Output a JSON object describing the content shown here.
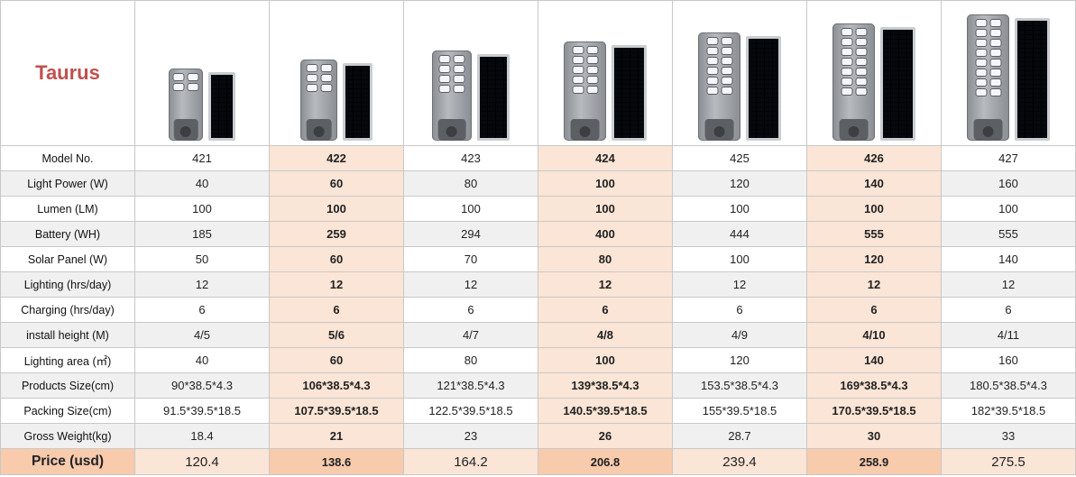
{
  "brand": "Taurus",
  "icons": {
    "lamp": "street-lamp-head-image",
    "panel": "solar-panel-image"
  },
  "colors": {
    "brand": "#c0504d",
    "highlight": "#fbe5d6",
    "price_label": "#f8cbad"
  },
  "products": [
    {
      "leds": 4
    },
    {
      "leds": 6
    },
    {
      "leds": 8
    },
    {
      "leds": 10
    },
    {
      "leds": 12
    },
    {
      "leds": 14
    },
    {
      "leds": 16
    }
  ],
  "rows": [
    {
      "label": "Model No.",
      "values": [
        "421",
        "422",
        "423",
        "424",
        "425",
        "426",
        "427"
      ]
    },
    {
      "label": "Light Power (W)",
      "values": [
        "40",
        "60",
        "80",
        "100",
        "120",
        "140",
        "160"
      ]
    },
    {
      "label": "Lumen (LM)",
      "values": [
        "100",
        "100",
        "100",
        "100",
        "100",
        "100",
        "100"
      ]
    },
    {
      "label": "Battery (WH)",
      "values": [
        "185",
        "259",
        "294",
        "400",
        "444",
        "555",
        "555"
      ]
    },
    {
      "label": "Solar Panel (W)",
      "values": [
        "50",
        "60",
        "70",
        "80",
        "100",
        "120",
        "140"
      ]
    },
    {
      "label": "Lighting  (hrs/day)",
      "values": [
        "12",
        "12",
        "12",
        "12",
        "12",
        "12",
        "12"
      ]
    },
    {
      "label": "Charging (hrs/day)",
      "values": [
        "6",
        "6",
        "6",
        "6",
        "6",
        "6",
        "6"
      ]
    },
    {
      "label": "install height (M)",
      "values": [
        "4/5",
        "5/6",
        "4/7",
        "4/8",
        "4/9",
        "4/10",
        "4/11"
      ]
    },
    {
      "label": "Lighting area (㎡)",
      "values": [
        "40",
        "60",
        "80",
        "100",
        "120",
        "140",
        "160"
      ]
    },
    {
      "label": "Products Size(cm)",
      "values": [
        "90*38.5*4.3",
        "106*38.5*4.3",
        "121*38.5*4.3",
        "139*38.5*4.3",
        "153.5*38.5*4.3",
        "169*38.5*4.3",
        "180.5*38.5*4.3"
      ]
    },
    {
      "label": "Packing Size(cm)",
      "values": [
        "91.5*39.5*18.5",
        "107.5*39.5*18.5",
        "122.5*39.5*18.5",
        "140.5*39.5*18.5",
        "155*39.5*18.5",
        "170.5*39.5*18.5",
        "182*39.5*18.5"
      ]
    },
    {
      "label": "Gross Weight(kg)",
      "values": [
        "18.4",
        "21",
        "23",
        "26",
        "28.7",
        "30",
        "33"
      ]
    }
  ],
  "price": {
    "label": "Price (usd)",
    "values": [
      "120.4",
      "138.6",
      "164.2",
      "206.8",
      "239.4",
      "258.9",
      "275.5"
    ]
  }
}
